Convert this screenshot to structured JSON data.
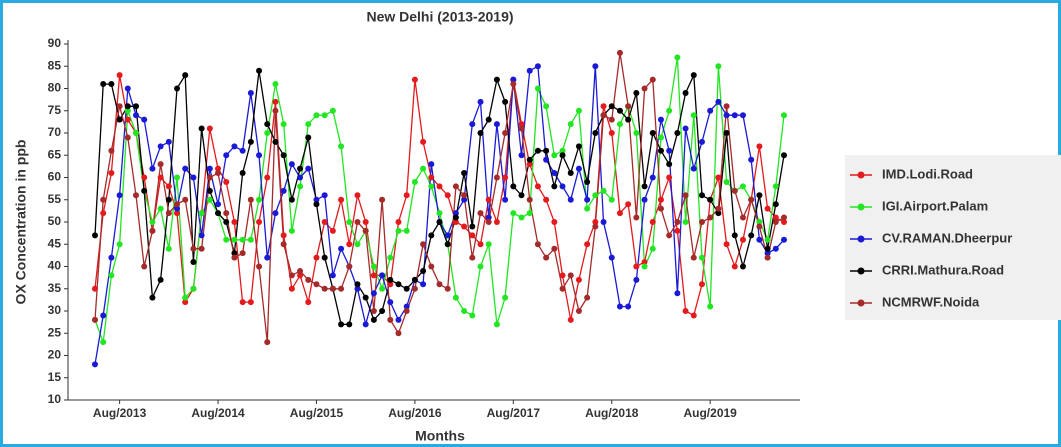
{
  "chart_data": {
    "type": "line",
    "title": "New Delhi (2013-2019)",
    "x_label": "Months",
    "y_label": "OX Concentration in ppb",
    "categories": [
      null,
      null,
      null,
      "Aug/2013",
      null,
      null,
      null,
      null,
      null,
      null,
      null,
      null,
      null,
      null,
      null,
      "Aug/2014",
      null,
      null,
      null,
      null,
      null,
      null,
      null,
      null,
      null,
      null,
      null,
      "Aug/2015",
      null,
      null,
      null,
      null,
      null,
      null,
      null,
      null,
      null,
      null,
      null,
      "Aug/2016",
      null,
      null,
      null,
      null,
      null,
      null,
      null,
      null,
      null,
      null,
      null,
      "Aug/2017",
      null,
      null,
      null,
      null,
      null,
      null,
      null,
      null,
      null,
      null,
      null,
      "Aug/2018",
      null,
      null,
      null,
      null,
      null,
      null,
      null,
      null,
      null,
      null,
      null,
      "Aug/2019",
      null,
      null,
      null,
      null,
      null,
      null,
      null,
      null,
      null
    ],
    "ylim": [
      10,
      90
    ],
    "yticks": [
      10,
      15,
      20,
      25,
      30,
      35,
      40,
      45,
      50,
      55,
      60,
      65,
      70,
      75,
      80,
      85,
      90
    ],
    "legend": "right",
    "series": [
      {
        "name": "IMD.Lodi.Road",
        "color": "#e41a1c",
        "values": [
          35,
          52,
          61,
          83,
          73,
          70,
          60,
          48,
          60,
          58,
          52,
          32,
          35,
          52,
          71,
          62,
          59,
          50,
          32,
          32,
          50,
          60,
          77,
          47,
          35,
          38,
          32,
          42,
          50,
          48,
          55,
          45,
          56,
          50,
          38,
          38,
          36,
          50,
          56,
          82,
          68,
          60,
          58,
          56,
          50,
          49,
          47,
          45,
          55,
          50,
          60,
          82,
          72,
          63,
          58,
          55,
          50,
          38,
          28,
          37,
          45,
          50,
          76,
          70,
          52,
          54,
          40,
          41,
          50,
          55,
          60,
          48,
          30,
          29,
          36,
          55,
          60,
          45,
          40,
          46,
          55,
          67,
          53,
          51,
          50
        ]
      },
      {
        "name": "IGI.Airport.Palam",
        "color": "#22e622",
        "values": [
          28,
          23,
          38,
          45,
          75,
          70,
          57,
          50,
          53,
          44,
          60,
          33,
          35,
          52,
          55,
          52,
          46,
          46,
          46,
          46,
          55,
          70,
          81,
          72,
          48,
          58,
          72,
          74,
          74,
          75,
          67,
          50,
          45,
          48,
          40,
          35,
          42,
          48,
          48,
          59,
          62,
          58,
          52,
          45,
          33,
          30,
          29,
          40,
          45,
          27,
          33,
          52,
          51,
          52,
          80,
          76,
          65,
          66,
          72,
          75,
          53,
          56,
          57,
          55,
          72,
          76,
          70,
          40,
          44,
          69,
          75,
          87,
          50,
          74,
          42,
          31,
          85,
          59,
          57,
          58,
          55,
          50,
          46,
          58,
          74
        ]
      },
      {
        "name": "CV.RAMAN.Dheerpur",
        "color": "#1a1ad6",
        "values": [
          18,
          29,
          42,
          56,
          80,
          74,
          73,
          62,
          67,
          68,
          53,
          62,
          60,
          47,
          62,
          54,
          65,
          67,
          66,
          79,
          65,
          42,
          52,
          57,
          63,
          60,
          62,
          55,
          56,
          38,
          44,
          40,
          35,
          27,
          34,
          38,
          32,
          28,
          31,
          37,
          36,
          63,
          50,
          47,
          52,
          55,
          72,
          77,
          51,
          72,
          55,
          82,
          65,
          84,
          85,
          64,
          61,
          58,
          55,
          62,
          55,
          85,
          50,
          42,
          31,
          31,
          37,
          55,
          60,
          73,
          66,
          34,
          71,
          62,
          68,
          75,
          77,
          74,
          74,
          74,
          64,
          46,
          43,
          44,
          46
        ]
      },
      {
        "name": "CRRI.Mathura.Road",
        "color": "#000000",
        "values": [
          47,
          81,
          81,
          73,
          76,
          76,
          57,
          33,
          37,
          55,
          80,
          83,
          41,
          71,
          57,
          52,
          50,
          43,
          61,
          68,
          84,
          72,
          68,
          65,
          55,
          62,
          69,
          54,
          42,
          35,
          27,
          27,
          36,
          33,
          28,
          30,
          37,
          36,
          35,
          37,
          39,
          47,
          50,
          45,
          51,
          61,
          49,
          70,
          73,
          82,
          77,
          58,
          56,
          64,
          66,
          66,
          58,
          65,
          61,
          67,
          59,
          70,
          74,
          76,
          75,
          73,
          79,
          58,
          70,
          66,
          63,
          70,
          79,
          83,
          56,
          55,
          52,
          70,
          47,
          40,
          47,
          56,
          44,
          54,
          65
        ]
      },
      {
        "name": "NCMRWF.Noida",
        "color": "#a52a2a",
        "values": [
          28,
          55,
          66,
          76,
          69,
          56,
          40,
          48,
          63,
          52,
          54,
          55,
          44,
          44,
          60,
          61,
          52,
          42,
          43,
          55,
          40,
          23,
          75,
          45,
          38,
          39,
          37,
          36,
          35,
          35,
          35,
          40,
          50,
          48,
          30,
          55,
          28,
          25,
          30,
          35,
          45,
          40,
          36,
          35,
          58,
          56,
          42,
          52,
          50,
          60,
          70,
          81,
          71,
          55,
          45,
          42,
          44,
          35,
          38,
          30,
          33,
          49,
          74,
          73,
          88,
          76,
          51,
          80,
          82,
          53,
          47,
          50,
          56,
          42,
          50,
          51,
          53,
          76,
          57,
          51,
          55,
          49,
          42,
          50,
          51
        ]
      }
    ]
  }
}
